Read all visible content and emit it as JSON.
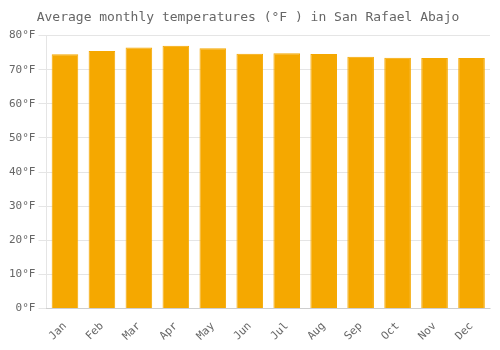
{
  "chart_data": {
    "type": "bar",
    "title": "Average monthly temperatures (°F ) in San Rafael Abajo",
    "categories": [
      "Jan",
      "Feb",
      "Mar",
      "Apr",
      "May",
      "Jun",
      "Jul",
      "Aug",
      "Sep",
      "Oct",
      "Nov",
      "Dec"
    ],
    "values": [
      74.5,
      75.5,
      76.5,
      77.0,
      76.3,
      74.7,
      74.8,
      74.6,
      73.8,
      73.5,
      73.4,
      73.4
    ],
    "color": "#F5A800",
    "ylim": [
      0,
      80
    ],
    "yticks": [
      {
        "value": 0,
        "label": "0°F"
      },
      {
        "value": 10,
        "label": "10°F"
      },
      {
        "value": 20,
        "label": "20°F"
      },
      {
        "value": 30,
        "label": "30°F"
      },
      {
        "value": 40,
        "label": "40°F"
      },
      {
        "value": 50,
        "label": "50°F"
      },
      {
        "value": 60,
        "label": "60°F"
      },
      {
        "value": 70,
        "label": "70°F"
      },
      {
        "value": 80,
        "label": "80°F"
      }
    ],
    "grid": true
  }
}
